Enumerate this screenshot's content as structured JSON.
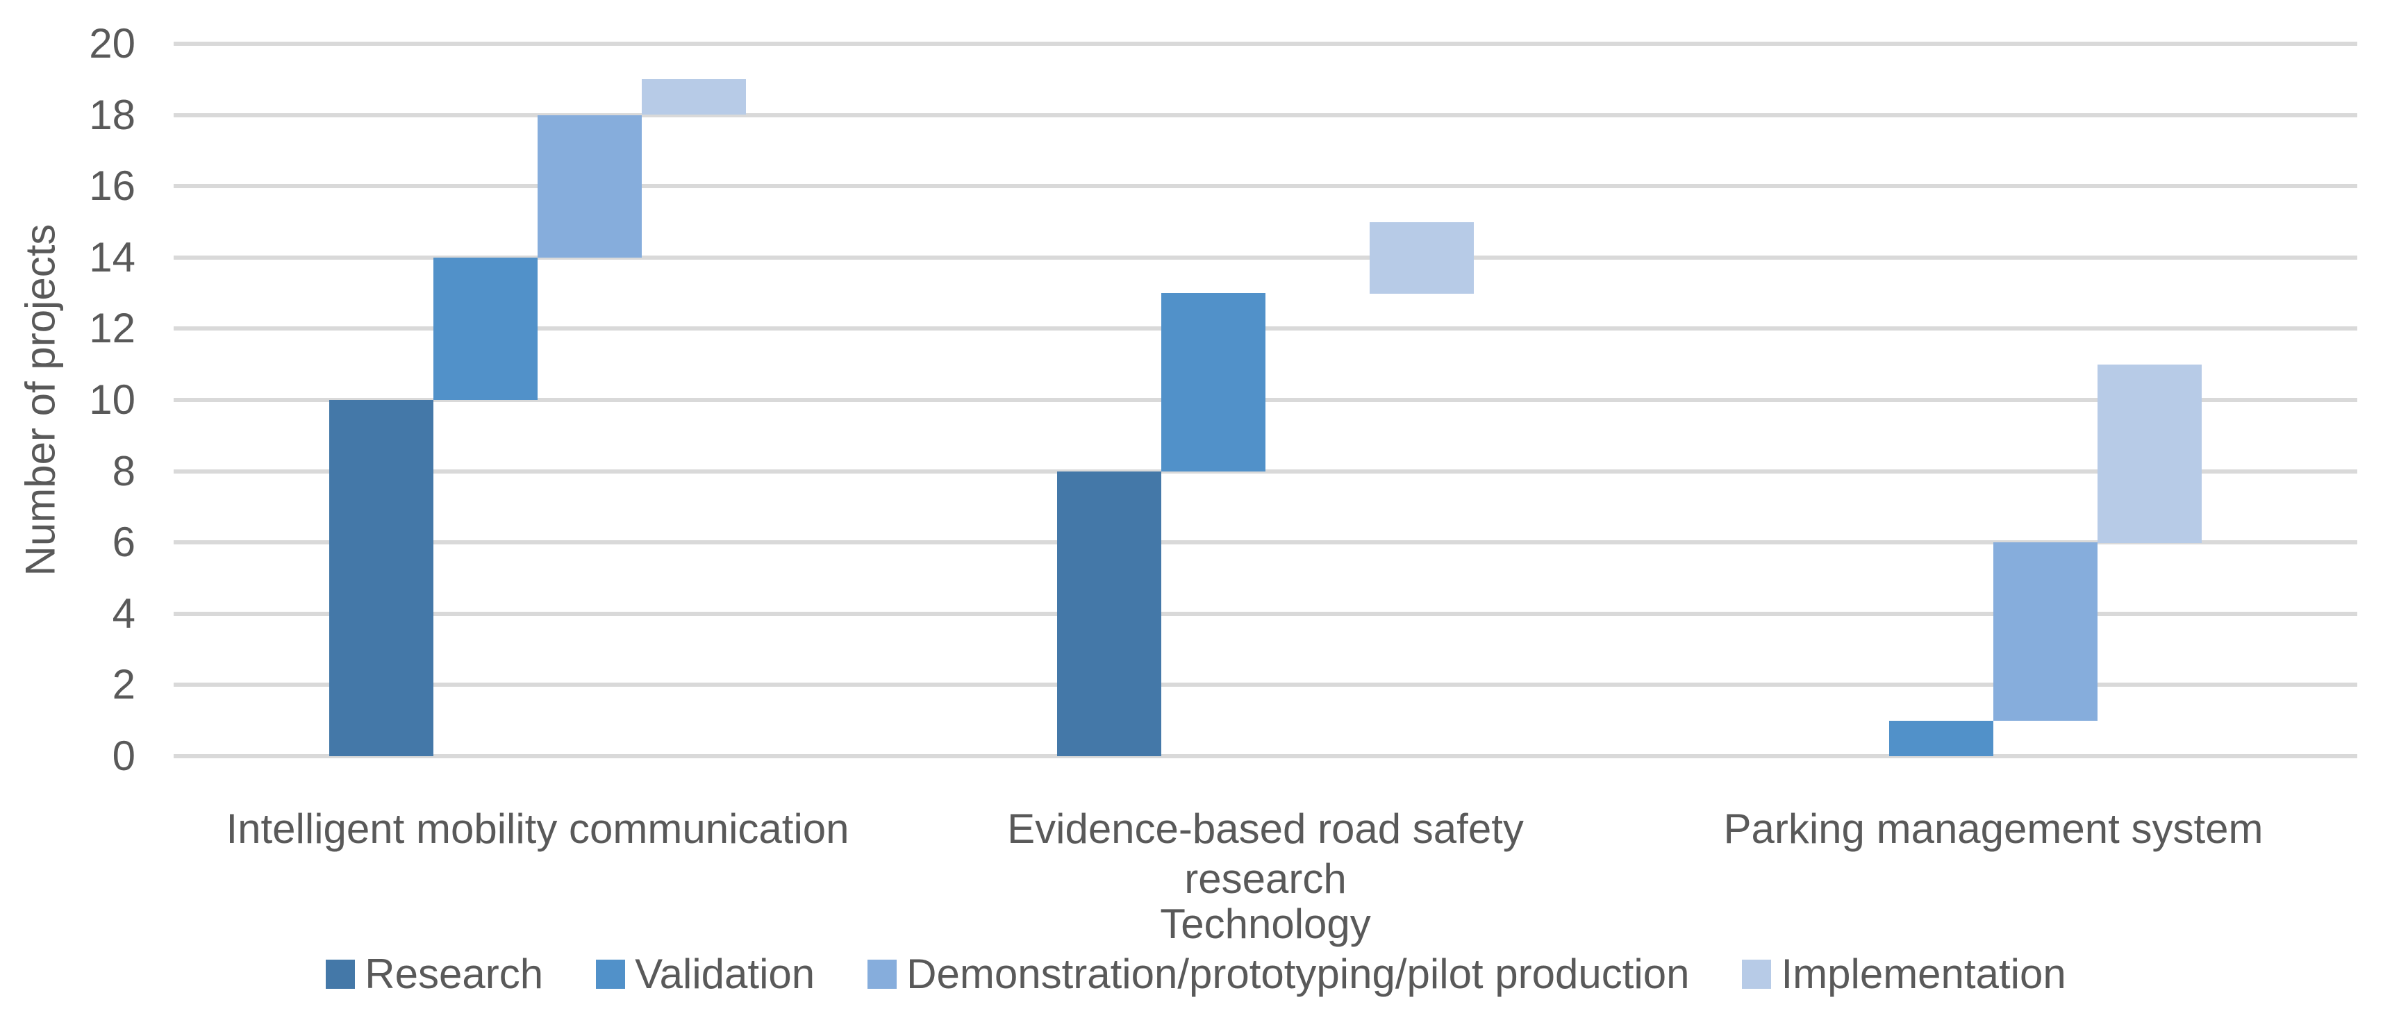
{
  "page": {
    "background": "#FFFFFF"
  },
  "colors": {
    "gridline": "#D9D9D9",
    "text": "#595959"
  },
  "chart_data": {
    "type": "bar",
    "subtype": "waterfall_cascade_clustered",
    "title": "",
    "xlabel": "Technology",
    "ylabel": "Number of projects",
    "ylim": [
      0,
      20
    ],
    "ytick_step": 2,
    "grid": true,
    "legend_position": "bottom",
    "categories": [
      "Intelligent mobility communication",
      "Evidence-based road safety research",
      "Parking management system"
    ],
    "series": [
      {
        "name": "Research",
        "color": "#4478A8",
        "values": [
          10,
          8,
          0
        ]
      },
      {
        "name": "Validation",
        "color": "#5191C9",
        "values": [
          4,
          5,
          1
        ]
      },
      {
        "name": "Demonstration/prototyping/pilot production",
        "color": "#86ADDC",
        "values": [
          4,
          0,
          5
        ]
      },
      {
        "name": "Implementation",
        "color": "#B7CBE7",
        "values": [
          1,
          2,
          5
        ]
      }
    ]
  }
}
